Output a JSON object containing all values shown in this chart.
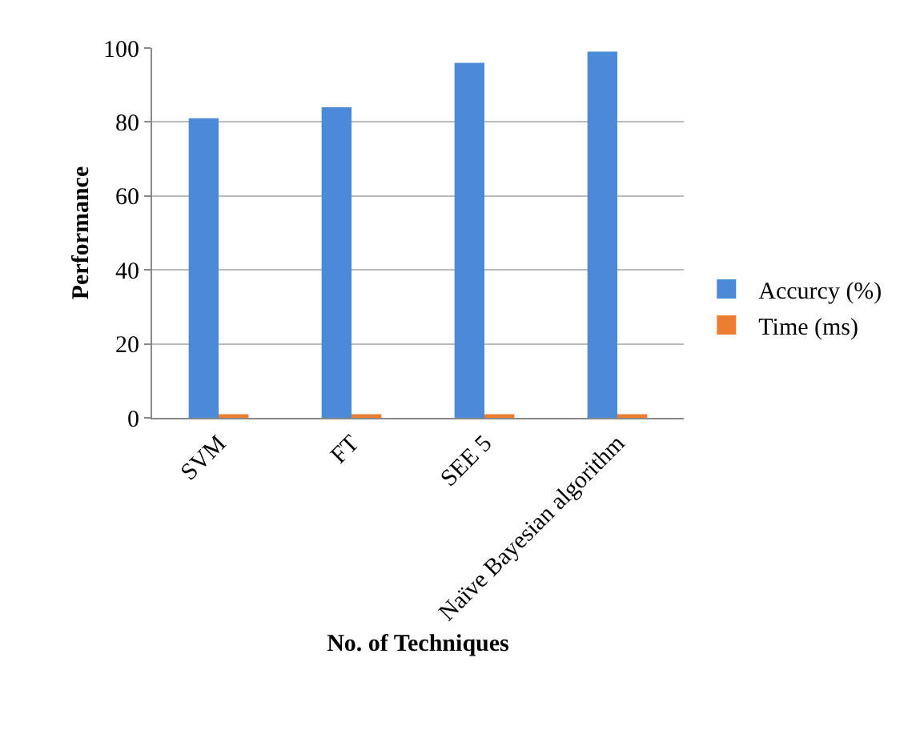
{
  "chart_data": {
    "type": "bar",
    "xlabel": "No. of Techniques",
    "ylabel": "Performance",
    "categories": [
      "SVM",
      "FT",
      "SEE 5",
      "Naïve Bayesian algorithm"
    ],
    "series": [
      {
        "name": "Accurcy (%)",
        "color": "#4a8ad6",
        "values": [
          81,
          84,
          96,
          99
        ]
      },
      {
        "name": "Time (ms)",
        "color": "#ed7d31",
        "values": [
          1,
          1,
          1,
          1
        ]
      }
    ],
    "ylim": [
      0,
      100
    ],
    "yticks": [
      0,
      20,
      40,
      60,
      80,
      100
    ],
    "grid": true,
    "legend": "right"
  }
}
